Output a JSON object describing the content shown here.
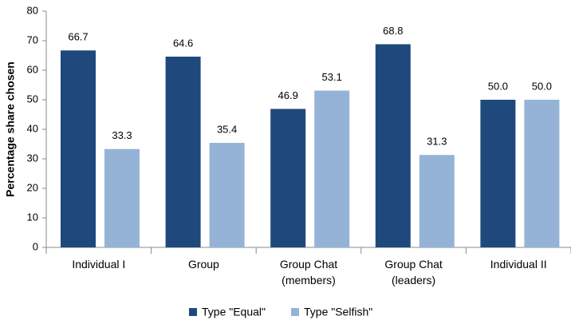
{
  "chart_data": {
    "type": "bar",
    "y_label": "Percentage share chosen",
    "categories": [
      "Individual I",
      "Group",
      "Group Chat\n(members)",
      "Group Chat\n(leaders)",
      "Individual II"
    ],
    "series": [
      {
        "name": "Type \"Equal\"",
        "color": "#1f497d",
        "values": [
          66.7,
          64.6,
          46.9,
          68.8,
          50
        ],
        "value_labels": [
          "66.7",
          "64.6",
          "46.9",
          "68.8",
          "50.0"
        ]
      },
      {
        "name": "Type \"Selfish\"",
        "color": "#95b3d7",
        "values": [
          33.3,
          35.4,
          53.1,
          31.3,
          50
        ],
        "value_labels": [
          "33.3",
          "35.4",
          "53.1",
          "31.3",
          "50.0"
        ]
      }
    ],
    "ylim": [
      0,
      80
    ],
    "yticks": [
      0,
      10,
      20,
      30,
      40,
      50,
      60,
      70,
      80
    ],
    "grid": false,
    "legend": "bottom"
  }
}
